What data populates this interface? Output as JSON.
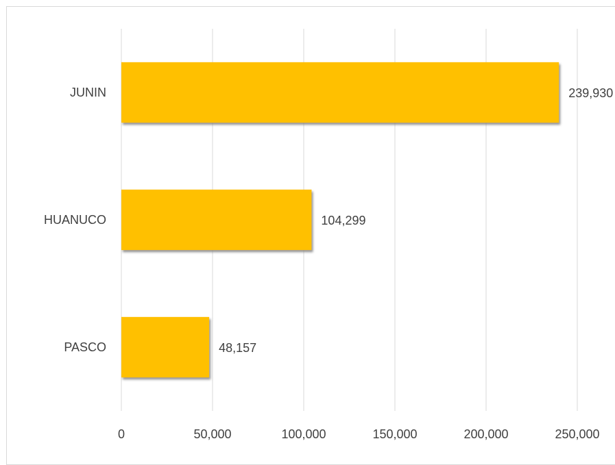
{
  "chart_data": {
    "type": "bar",
    "orientation": "horizontal",
    "title": "",
    "xlabel": "",
    "ylabel": "",
    "categories": [
      "JUNIN",
      "HUANUCO",
      "PASCO"
    ],
    "values": [
      239930,
      104299,
      48157
    ],
    "value_labels": [
      "239,930",
      "104,299",
      "48,157"
    ],
    "xlim": [
      0,
      250000
    ],
    "ticks": [
      0,
      50000,
      100000,
      150000,
      200000,
      250000
    ],
    "tick_labels": [
      "0",
      "50,000",
      "100,000",
      "150,000",
      "200,000",
      "250,000"
    ],
    "grid": "vertical",
    "legend": "none",
    "colors": {
      "bar": "#FFC000",
      "bar_shadow": "#8c8c8c",
      "grid": "#d9d9d9",
      "text": "#404040",
      "frame": "#d9d9d9"
    }
  }
}
